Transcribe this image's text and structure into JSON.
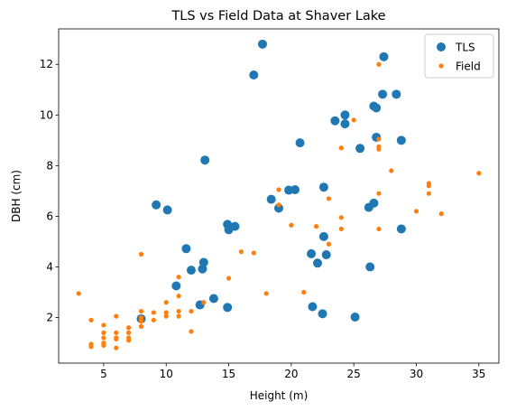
{
  "chart_data": {
    "type": "scatter",
    "title": "TLS vs Field Data at Shaver Lake",
    "xlabel": "Height (m)",
    "ylabel": "DBH (cm)",
    "xlim": [
      1.4,
      36.6
    ],
    "ylim": [
      0.2,
      13.4
    ],
    "xticks": [
      5,
      10,
      15,
      20,
      25,
      30,
      35
    ],
    "yticks": [
      2,
      4,
      6,
      8,
      10,
      12
    ],
    "grid": false,
    "legend": "top-right",
    "series": [
      {
        "name": "TLS",
        "color": "#1f77b4",
        "marker_size": "large",
        "points": [
          [
            8.0,
            1.95
          ],
          [
            9.2,
            6.45
          ],
          [
            10.1,
            6.25
          ],
          [
            10.8,
            3.25
          ],
          [
            11.6,
            4.72
          ],
          [
            12.0,
            3.87
          ],
          [
            12.7,
            2.5
          ],
          [
            12.9,
            3.92
          ],
          [
            13.0,
            4.18
          ],
          [
            13.1,
            8.22
          ],
          [
            13.8,
            2.75
          ],
          [
            14.9,
            2.4
          ],
          [
            14.9,
            5.68
          ],
          [
            15.0,
            5.47
          ],
          [
            15.5,
            5.6
          ],
          [
            17.0,
            11.58
          ],
          [
            17.7,
            12.8
          ],
          [
            18.4,
            6.67
          ],
          [
            19.0,
            6.32
          ],
          [
            19.8,
            7.03
          ],
          [
            20.3,
            7.05
          ],
          [
            20.7,
            8.9
          ],
          [
            21.6,
            4.52
          ],
          [
            21.7,
            2.43
          ],
          [
            22.1,
            4.15
          ],
          [
            22.5,
            2.15
          ],
          [
            22.6,
            5.2
          ],
          [
            22.6,
            7.15
          ],
          [
            22.8,
            4.48
          ],
          [
            23.5,
            9.77
          ],
          [
            24.3,
            9.65
          ],
          [
            24.3,
            10.0
          ],
          [
            25.1,
            2.02
          ],
          [
            25.5,
            8.68
          ],
          [
            26.2,
            6.35
          ],
          [
            26.3,
            4.0
          ],
          [
            26.6,
            10.35
          ],
          [
            26.6,
            6.52
          ],
          [
            26.8,
            9.12
          ],
          [
            26.8,
            10.28
          ],
          [
            27.3,
            10.82
          ],
          [
            27.4,
            12.3
          ],
          [
            28.4,
            10.82
          ],
          [
            28.8,
            9.0
          ],
          [
            28.8,
            5.5
          ]
        ]
      },
      {
        "name": "Field",
        "color": "#ff7f0e",
        "marker_size": "small",
        "points": [
          [
            3.0,
            2.95
          ],
          [
            4.0,
            1.9
          ],
          [
            4.0,
            0.95
          ],
          [
            4.0,
            0.85
          ],
          [
            5.0,
            1.7
          ],
          [
            5.0,
            1.4
          ],
          [
            5.0,
            1.2
          ],
          [
            5.0,
            1.0
          ],
          [
            5.0,
            0.9
          ],
          [
            6.0,
            2.05
          ],
          [
            6.0,
            1.4
          ],
          [
            6.0,
            1.2
          ],
          [
            6.0,
            1.15
          ],
          [
            6.0,
            0.8
          ],
          [
            7.0,
            1.6
          ],
          [
            7.0,
            1.4
          ],
          [
            7.0,
            1.2
          ],
          [
            7.0,
            1.1
          ],
          [
            8.0,
            4.5
          ],
          [
            8.0,
            2.25
          ],
          [
            8.0,
            2.0
          ],
          [
            8.0,
            1.9
          ],
          [
            8.0,
            1.85
          ],
          [
            8.0,
            1.65
          ],
          [
            9.0,
            2.2
          ],
          [
            9.0,
            1.9
          ],
          [
            10.0,
            2.6
          ],
          [
            10.0,
            2.2
          ],
          [
            10.0,
            2.05
          ],
          [
            11.0,
            3.6
          ],
          [
            11.0,
            2.85
          ],
          [
            11.0,
            2.25
          ],
          [
            11.0,
            2.05
          ],
          [
            12.0,
            2.25
          ],
          [
            12.0,
            1.45
          ],
          [
            13.0,
            2.6
          ],
          [
            15.0,
            3.55
          ],
          [
            16.0,
            4.6
          ],
          [
            17.0,
            4.55
          ],
          [
            18.0,
            2.95
          ],
          [
            19.0,
            7.05
          ],
          [
            19.0,
            6.45
          ],
          [
            20.0,
            5.65
          ],
          [
            21.0,
            3.0
          ],
          [
            22.0,
            5.6
          ],
          [
            23.0,
            6.7
          ],
          [
            23.0,
            4.9
          ],
          [
            24.0,
            8.7
          ],
          [
            24.0,
            5.95
          ],
          [
            24.0,
            5.5
          ],
          [
            25.0,
            9.8
          ],
          [
            27.0,
            12.0
          ],
          [
            27.0,
            9.05
          ],
          [
            27.0,
            8.75
          ],
          [
            27.0,
            8.65
          ],
          [
            27.0,
            6.9
          ],
          [
            27.0,
            5.5
          ],
          [
            28.0,
            7.8
          ],
          [
            30.0,
            6.2
          ],
          [
            31.0,
            7.3
          ],
          [
            31.0,
            7.2
          ],
          [
            31.0,
            6.9
          ],
          [
            32.0,
            6.1
          ],
          [
            35.0,
            7.7
          ]
        ]
      }
    ]
  }
}
